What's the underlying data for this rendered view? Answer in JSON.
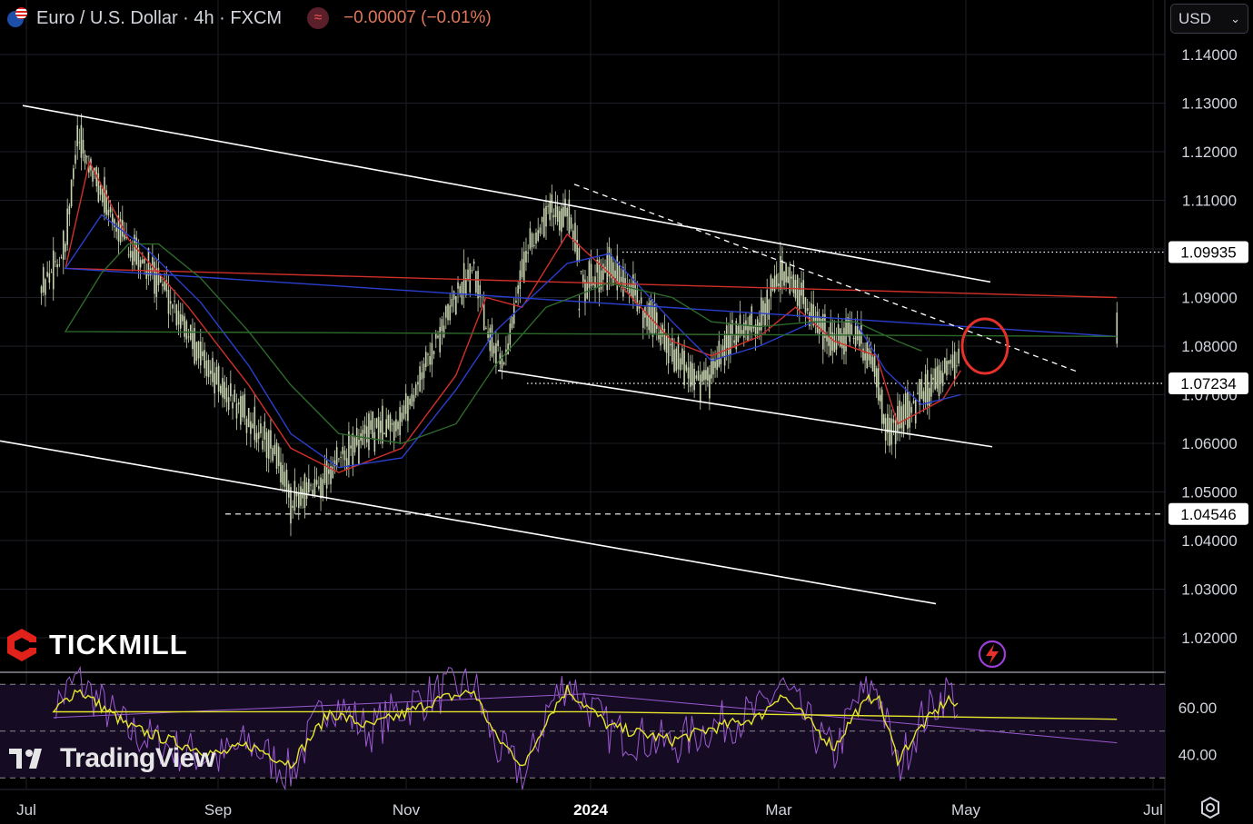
{
  "header": {
    "symbol_title": "Euro / U.S. Dollar · 4h · FXCM",
    "indicator_icon": "≈",
    "change_text": "−0.00007 (−0.01%)"
  },
  "currency_selector": {
    "label": "USD",
    "icon": "chevron-down-icon"
  },
  "branding": {
    "broker": "TICKMILL",
    "platform": "TradingView"
  },
  "colors": {
    "background": "#000000",
    "candles": "#c8d4b0",
    "ma_fast": "#d0302a",
    "ma_mid": "#2a3fcf",
    "ma_slow": "#2d6a2a",
    "rsi": "#9b59d0",
    "rsi_signal": "#e5e52c",
    "trendlines": "#ffffff",
    "highlight_circle": "#e8302a"
  },
  "chart_data": [
    {
      "type": "line",
      "subtype": "candlestick-price",
      "title": "Euro / U.S. Dollar · 4h · FXCM",
      "xlabel": "",
      "ylabel": "",
      "x_ticks": [
        "Jul",
        "Sep",
        "Nov",
        "2024",
        "Mar",
        "May",
        "Jul"
      ],
      "y_ticks": [
        "1.14000",
        "1.13000",
        "1.12000",
        "1.11000",
        "1.10000",
        "1.09000",
        "1.08000",
        "1.07000",
        "1.06000",
        "1.05000",
        "1.04000",
        "1.03000",
        "1.02000"
      ],
      "ylim": [
        1.0152,
        1.1501
      ],
      "grid": true,
      "price_labels": [
        "1.09935",
        "1.07234",
        "1.04546"
      ],
      "horizontal_levels": [
        {
          "value": 1.09935,
          "style": "dotted"
        },
        {
          "value": 1.07234,
          "style": "dotted"
        },
        {
          "value": 1.04546,
          "style": "dashed"
        }
      ],
      "channel_lines": [
        {
          "from": [
            "Jul",
            1.1295
          ],
          "to": [
            "May",
            1.0932
          ]
        },
        {
          "from": [
            "Jun",
            1.0605
          ],
          "to": [
            "Apr",
            1.027
          ]
        },
        {
          "from": [
            "Dec",
            1.075
          ],
          "to": [
            "May",
            1.0593
          ]
        }
      ],
      "resistance_line_dashed": {
        "from": [
          "Dec",
          1.1133
        ],
        "to": [
          "May",
          1.0748
        ]
      },
      "series": [
        {
          "kind": "price",
          "x": [
            "Jun 28",
            "Jul 6",
            "Jul 14",
            "Jul 18",
            "Jul 25",
            "Aug 4",
            "Aug 14",
            "Aug 24",
            "Sep 3",
            "Sep 13",
            "Sep 23",
            "Sep 27",
            "Oct 3",
            "Oct 13",
            "Oct 23",
            "Nov 3",
            "Nov 11",
            "Nov 21",
            "Nov 27",
            "Dec 1",
            "Dec 7",
            "Dec 13",
            "Dec 21",
            "Dec 28",
            "Jan 3",
            "Jan 11",
            "Jan 21",
            "Feb 1",
            "Feb 11",
            "Feb 14",
            "Feb 21",
            "Mar 1",
            "Mar 8",
            "Mar 13",
            "Mar 19",
            "Mar 26",
            "Apr 2",
            "Apr 9",
            "Apr 12",
            "Apr 16",
            "Apr 24",
            "May 3",
            "May 7"
          ],
          "values": [
            1.085,
            1.092,
            1.1,
            1.123,
            1.113,
            1.1,
            1.094,
            1.083,
            1.072,
            1.065,
            1.057,
            1.048,
            1.05,
            1.056,
            1.062,
            1.065,
            1.076,
            1.09,
            1.097,
            1.085,
            1.076,
            1.096,
            1.108,
            1.108,
            1.093,
            1.096,
            1.089,
            1.079,
            1.072,
            1.074,
            1.082,
            1.085,
            1.095,
            1.092,
            1.086,
            1.081,
            1.083,
            1.075,
            1.062,
            1.064,
            1.07,
            1.076,
            1.076
          ]
        },
        {
          "kind": "ma_fast",
          "x": [
            "Jun 28",
            "Jul 14",
            "Jul 22",
            "Aug 4",
            "Aug 24",
            "Sep 13",
            "Sep 27",
            "Oct 13",
            "Nov 3",
            "Nov 21",
            "Dec 1",
            "Dec 13",
            "Dec 28",
            "Jan 11",
            "Feb 1",
            "Feb 14",
            "Mar 1",
            "Mar 13",
            "Mar 26",
            "Apr 9",
            "Apr 16",
            "May 1",
            "May 7"
          ],
          "values": [
            1.09,
            1.096,
            1.118,
            1.102,
            1.088,
            1.072,
            1.059,
            1.054,
            1.059,
            1.074,
            1.09,
            1.088,
            1.103,
            1.095,
            1.081,
            1.078,
            1.082,
            1.088,
            1.081,
            1.078,
            1.064,
            1.069,
            1.075
          ]
        },
        {
          "kind": "ma_mid",
          "x": [
            "Jun 28",
            "Jul 14",
            "Jul 26",
            "Aug 10",
            "Aug 28",
            "Sep 13",
            "Sep 27",
            "Oct 13",
            "Nov 3",
            "Nov 21",
            "Dec 4",
            "Dec 28",
            "Jan 11",
            "Feb 1",
            "Feb 14",
            "Mar 1",
            "Mar 19",
            "Apr 2",
            "Apr 12",
            "Apr 24",
            "May 7"
          ],
          "values": [
            1.082,
            1.096,
            1.107,
            1.1,
            1.089,
            1.076,
            1.062,
            1.055,
            1.057,
            1.071,
            1.083,
            1.097,
            1.099,
            1.085,
            1.077,
            1.08,
            1.085,
            1.085,
            1.075,
            1.068,
            1.07
          ]
        },
        {
          "kind": "ma_slow",
          "x": [
            "Jun 28",
            "Jul 14",
            "Jul 26",
            "Aug 4",
            "Aug 14",
            "Aug 28",
            "Sep 13",
            "Sep 27",
            "Oct 13",
            "Nov 3",
            "Nov 21",
            "Dec 4",
            "Dec 21",
            "Jan 11",
            "Feb 1",
            "Feb 14",
            "Mar 1",
            "Mar 19",
            "Apr 2",
            "Apr 16",
            "Apr 24"
          ],
          "values": [
            1.082,
            1.083,
            1.095,
            1.101,
            1.101,
            1.094,
            1.083,
            1.072,
            1.062,
            1.06,
            1.064,
            1.076,
            1.088,
            1.093,
            1.09,
            1.085,
            1.084,
            1.085,
            1.085,
            1.081,
            1.079
          ]
        }
      ],
      "annotations": [
        {
          "type": "circle",
          "near": [
            "May",
            1.081
          ]
        }
      ]
    },
    {
      "type": "line",
      "subtype": "rsi-oscillator",
      "y_ticks": [
        "60.00",
        "40.00"
      ],
      "ylim": [
        25,
        78
      ],
      "reference_levels": [
        70,
        50,
        30
      ],
      "series": [
        {
          "kind": "rsi",
          "x": [
            "Jun 28",
            "Jul 10",
            "Jul 18",
            "Aug 4",
            "Aug 20",
            "Sep 3",
            "Sep 13",
            "Sep 27",
            "Oct 10",
            "Oct 23",
            "Nov 3",
            "Nov 14",
            "Nov 27",
            "Dec 4",
            "Dec 14",
            "Dec 21",
            "Dec 28",
            "Jan 11",
            "Feb 1",
            "Feb 14",
            "Mar 1",
            "Mar 8",
            "Mar 19",
            "Mar 26",
            "Apr 2",
            "Apr 9",
            "Apr 16",
            "Apr 24",
            "May 3",
            "May 7"
          ],
          "values": [
            55,
            60,
            72,
            50,
            42,
            38,
            45,
            32,
            64,
            50,
            60,
            66,
            70,
            44,
            30,
            58,
            72,
            50,
            44,
            52,
            58,
            70,
            50,
            40,
            62,
            70,
            34,
            55,
            68,
            58
          ]
        },
        {
          "kind": "rsi_signal",
          "x": [
            "Jun 28",
            "Jul 10",
            "Jul 18",
            "Aug 4",
            "Aug 20",
            "Sep 3",
            "Sep 13",
            "Sep 27",
            "Oct 10",
            "Oct 23",
            "Nov 3",
            "Nov 14",
            "Nov 27",
            "Dec 4",
            "Dec 14",
            "Dec 21",
            "Dec 28",
            "Jan 11",
            "Feb 1",
            "Feb 14",
            "Mar 1",
            "Mar 8",
            "Mar 19",
            "Mar 26",
            "Apr 2",
            "Apr 9",
            "Apr 16",
            "Apr 24",
            "May 3",
            "May 7"
          ],
          "values": [
            54,
            58,
            68,
            52,
            45,
            40,
            44,
            36,
            58,
            52,
            57,
            63,
            67,
            48,
            35,
            55,
            68,
            52,
            46,
            51,
            56,
            66,
            52,
            43,
            58,
            66,
            38,
            52,
            64,
            58
          ]
        }
      ]
    }
  ]
}
